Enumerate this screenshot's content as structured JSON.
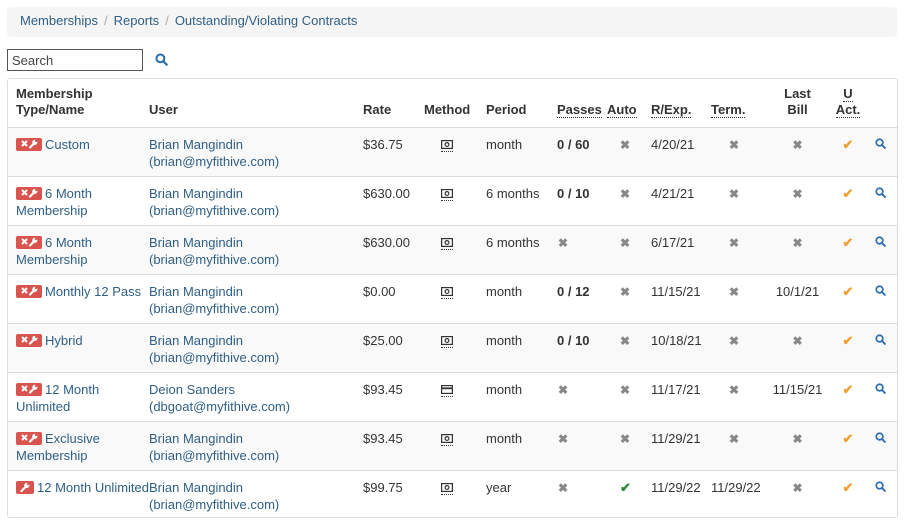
{
  "breadcrumb": [
    "Memberships",
    "Reports",
    "Outstanding/Violating Contracts"
  ],
  "search": {
    "placeholder": "Search"
  },
  "colors": {
    "accent": "#2f5f85",
    "danger": "#d9534f",
    "check": "#f0a030",
    "auto_check": "#2e8b3e"
  },
  "columns": {
    "membership_line1": "Membership",
    "membership_line2": "Type/Name",
    "user": "User",
    "rate": "Rate",
    "method": "Method",
    "period": "Period",
    "passes": "Passes",
    "auto": "Auto",
    "rexp": "R/Exp.",
    "term": "Term.",
    "last_bill_line1": "Last",
    "last_bill_line2": "Bill",
    "uact_line1": "U",
    "uact_line2": "Act."
  },
  "rows": [
    {
      "name": "Custom",
      "user_name": "Brian Mangindin",
      "user_email": "(brian@myfithive.com)",
      "rate": "$36.75",
      "method": "cash-icon",
      "period": "month",
      "passes": "0 / 60",
      "auto": "x",
      "rexp": "4/20/21",
      "term": "x",
      "last_bill": "x",
      "badge": "wrench-x"
    },
    {
      "name": "6 Month Membership",
      "user_name": "Brian Mangindin",
      "user_email": "(brian@myfithive.com)",
      "rate": "$630.00",
      "method": "cash-icon",
      "period": "6 months",
      "passes": "0 / 10",
      "auto": "x",
      "rexp": "4/21/21",
      "term": "x",
      "last_bill": "x",
      "badge": "wrench-x"
    },
    {
      "name": "6 Month Membership",
      "user_name": "Brian Mangindin",
      "user_email": "(brian@myfithive.com)",
      "rate": "$630.00",
      "method": "cash-icon",
      "period": "6 months",
      "passes": "x",
      "auto": "x",
      "rexp": "6/17/21",
      "term": "x",
      "last_bill": "x",
      "badge": "wrench-x"
    },
    {
      "name": "Monthly 12 Pass",
      "user_name": "Brian Mangindin",
      "user_email": "(brian@myfithive.com)",
      "rate": "$0.00",
      "method": "cash-icon",
      "period": "month",
      "passes": "0 / 12",
      "auto": "x",
      "rexp": "11/15/21",
      "term": "x",
      "last_bill": "10/1/21",
      "badge": "wrench-x"
    },
    {
      "name": "Hybrid",
      "user_name": "Brian Mangindin",
      "user_email": "(brian@myfithive.com)",
      "rate": "$25.00",
      "method": "cash-icon",
      "period": "month",
      "passes": "0 / 10",
      "auto": "x",
      "rexp": "10/18/21",
      "term": "x",
      "last_bill": "x",
      "badge": "wrench-x"
    },
    {
      "name": "12 Month Unlimited",
      "user_name": "Deion Sanders",
      "user_email": "(dbgoat@myfithive.com)",
      "rate": "$93.45",
      "method": "card-icon",
      "period": "month",
      "passes": "x",
      "auto": "x",
      "rexp": "11/17/21",
      "term": "x",
      "last_bill": "11/15/21",
      "badge": "wrench-x"
    },
    {
      "name": "Exclusive Membership",
      "user_name": "Brian Mangindin",
      "user_email": "(brian@myfithive.com)",
      "rate": "$93.45",
      "method": "cash-icon",
      "period": "month",
      "passes": "x",
      "auto": "x",
      "rexp": "11/29/21",
      "term": "x",
      "last_bill": "x",
      "badge": "wrench-x"
    },
    {
      "name": "12 Month Unlimited",
      "user_name": "Brian Mangindin",
      "user_email": "(brian@myfithive.com)",
      "rate": "$99.75",
      "method": "cash-icon",
      "period": "year",
      "passes": "x",
      "auto": "check",
      "rexp": "11/29/22",
      "term": "11/29/22",
      "last_bill": "x",
      "badge": "wrench"
    }
  ]
}
